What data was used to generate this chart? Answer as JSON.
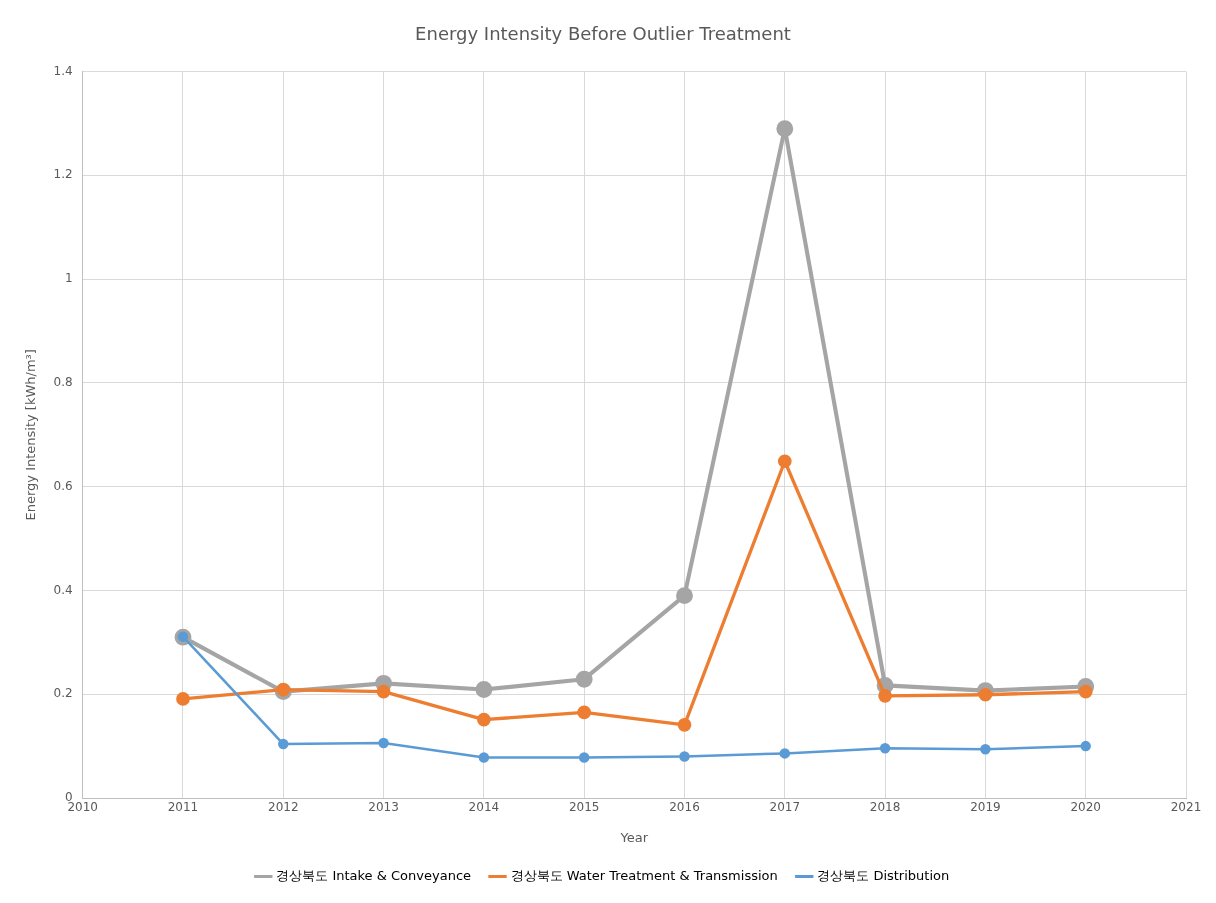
{
  "chart_data": {
    "type": "line",
    "title": "Energy Intensity Before Outlier Treatment",
    "xlabel": "Year",
    "ylabel": "Energy Intensity [kWh/m³]",
    "x": [
      2011,
      2012,
      2013,
      2014,
      2015,
      2016,
      2017,
      2018,
      2019,
      2020
    ],
    "series": [
      {
        "name": "경상북도 Intake & Conveyance",
        "color": "#a5a5a5",
        "values": [
          0.31,
          0.205,
          0.221,
          0.209,
          0.229,
          0.39,
          1.29,
          0.217,
          0.207,
          0.215
        ]
      },
      {
        "name": "경상북도 Water Treatment & Transmission",
        "color": "#ed7d31",
        "values": [
          0.191,
          0.209,
          0.205,
          0.151,
          0.165,
          0.141,
          0.649,
          0.197,
          0.199,
          0.205
        ]
      },
      {
        "name": "경상북도 Distribution",
        "color": "#5b9bd5",
        "values": [
          0.311,
          0.104,
          0.106,
          0.078,
          0.078,
          0.08,
          0.086,
          0.096,
          0.094,
          0.1
        ]
      }
    ],
    "xlim": [
      2010,
      2021
    ],
    "xticks": [
      2010,
      2011,
      2012,
      2013,
      2014,
      2015,
      2016,
      2017,
      2018,
      2019,
      2020,
      2021
    ],
    "ylim": [
      0,
      1.4
    ],
    "yticks": [
      0,
      0.2,
      0.4,
      0.6,
      0.8,
      1,
      1.2,
      1.4
    ],
    "grid": true,
    "legend": "bottom",
    "marker": "circle",
    "line_style": "solid"
  }
}
